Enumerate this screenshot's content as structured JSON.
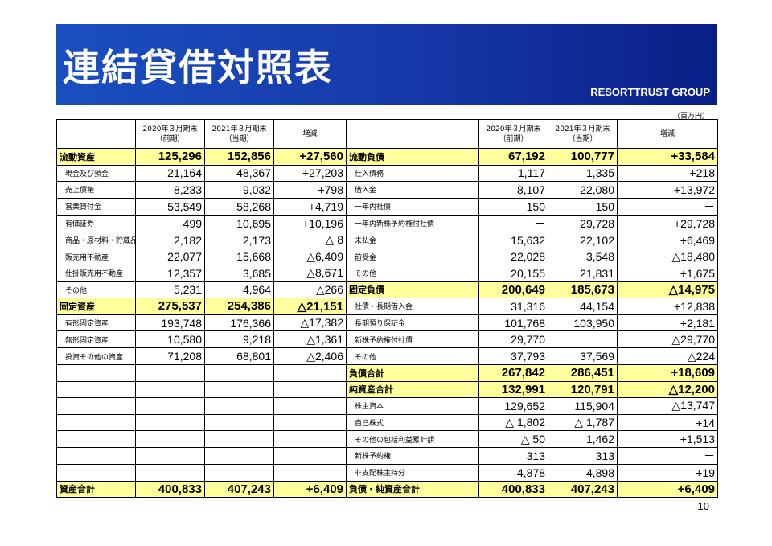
{
  "title": "連結貸借対照表",
  "brand": "RESORTTRUST GROUP",
  "unit": "（百万円）",
  "page_number": "10",
  "headers": {
    "prev_l1": "2020年３月期末",
    "prev_l2": "（前期）",
    "cur_l1": "2021年３月期末",
    "cur_l2": "（当期）",
    "change": "増減"
  },
  "colors": {
    "banner": "#1a4fc0",
    "highlight": "#ffff9c"
  },
  "left": [
    {
      "label": "流動資産",
      "prev": "125,296",
      "cur": "152,856",
      "chg": "+27,560",
      "hl": true
    },
    {
      "label": "現金及び預金",
      "prev": "21,164",
      "cur": "48,367",
      "chg": "+27,203"
    },
    {
      "label": "売上債権",
      "prev": "8,233",
      "cur": "9,032",
      "chg": "+798"
    },
    {
      "label": "営業貸付金",
      "prev": "53,549",
      "cur": "58,268",
      "chg": "+4,719"
    },
    {
      "label": "有価証券",
      "prev": "499",
      "cur": "10,695",
      "chg": "+10,196"
    },
    {
      "label": "商品・原材料・貯蔵品",
      "prev": "2,182",
      "cur": "2,173",
      "chg": "△ 8"
    },
    {
      "label": "販売用不動産",
      "prev": "22,077",
      "cur": "15,668",
      "chg": "△6,409"
    },
    {
      "label": "仕掛販売用不動産",
      "prev": "12,357",
      "cur": "3,685",
      "chg": "△8,671"
    },
    {
      "label": "その他",
      "prev": "5,231",
      "cur": "4,964",
      "chg": "△266"
    },
    {
      "label": "固定資産",
      "prev": "275,537",
      "cur": "254,386",
      "chg": "△21,151",
      "hl": true
    },
    {
      "label": "有形固定資産",
      "prev": "193,748",
      "cur": "176,366",
      "chg": "△17,382"
    },
    {
      "label": "無形固定資産",
      "prev": "10,580",
      "cur": "9,218",
      "chg": "△1,361"
    },
    {
      "label": "投資その他の資産",
      "prev": "71,208",
      "cur": "68,801",
      "chg": "△2,406"
    }
  ],
  "left_total": {
    "label": "資産合計",
    "prev": "400,833",
    "cur": "407,243",
    "chg": "+6,409"
  },
  "right": [
    {
      "label": "流動負債",
      "prev": "67,192",
      "cur": "100,777",
      "chg": "+33,584",
      "hl": true
    },
    {
      "label": "仕入債務",
      "prev": "1,117",
      "cur": "1,335",
      "chg": "+218"
    },
    {
      "label": "借入金",
      "prev": "8,107",
      "cur": "22,080",
      "chg": "+13,972"
    },
    {
      "label": "一年内社債",
      "prev": "150",
      "cur": "150",
      "chg": "－"
    },
    {
      "label": "一年内新株予約権付社債",
      "prev": "－",
      "cur": "29,728",
      "chg": "+29,728"
    },
    {
      "label": "未払金",
      "prev": "15,632",
      "cur": "22,102",
      "chg": "+6,469"
    },
    {
      "label": "前受金",
      "prev": "22,028",
      "cur": "3,548",
      "chg": "△18,480"
    },
    {
      "label": "その他",
      "prev": "20,155",
      "cur": "21,831",
      "chg": "+1,675"
    },
    {
      "label": "固定負債",
      "prev": "200,649",
      "cur": "185,673",
      "chg": "△14,975",
      "hl": true
    },
    {
      "label": "社債・長期借入金",
      "prev": "31,316",
      "cur": "44,154",
      "chg": "+12,838"
    },
    {
      "label": "長期預り保証金",
      "prev": "101,768",
      "cur": "103,950",
      "chg": "+2,181"
    },
    {
      "label": "新株予約権付社債",
      "prev": "29,770",
      "cur": "－",
      "chg": "△29,770"
    },
    {
      "label": "その他",
      "prev": "37,793",
      "cur": "37,569",
      "chg": "△224"
    },
    {
      "label": "負債合計",
      "prev": "267,842",
      "cur": "286,451",
      "chg": "+18,609",
      "hl": true
    },
    {
      "label": "純資産合計",
      "prev": "132,991",
      "cur": "120,791",
      "chg": "△12,200",
      "hl": true
    },
    {
      "label": "株主資本",
      "prev": "129,652",
      "cur": "115,904",
      "chg": "△13,747"
    },
    {
      "label": "自己株式",
      "prev": "△ 1,802",
      "cur": "△ 1,787",
      "chg": "+14"
    },
    {
      "label": "その他の包括利益累計額",
      "prev": "△ 50",
      "cur": "1,462",
      "chg": "+1,513"
    },
    {
      "label": "新株予約権",
      "prev": "313",
      "cur": "313",
      "chg": "－"
    },
    {
      "label": "非支配株主持分",
      "prev": "4,878",
      "cur": "4,898",
      "chg": "+19"
    }
  ],
  "right_total": {
    "label": "負債・純資産合計",
    "prev": "400,833",
    "cur": "407,243",
    "chg": "+6,409"
  }
}
